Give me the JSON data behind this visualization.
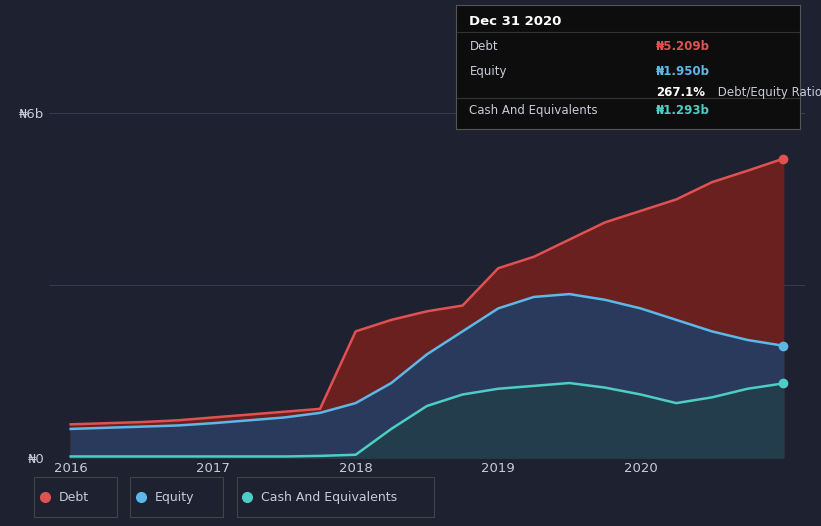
{
  "background_color": "#1e2130",
  "tooltip_bg": "#0d0d0d",
  "tooltip_border": "#555555",
  "divider_color": "#333333",
  "grid_color": "#3a3f55",
  "text_color": "#c8ccd8",
  "debt_color": "#e05252",
  "equity_color": "#5db8e8",
  "cash_color": "#4ecdc4",
  "debt_fill_color": "#6b2020",
  "equity_fill_color": "#2a3a5c",
  "cash_fill_color": "#1e4040",
  "legend_border_color": "#444444",
  "ytick_labels": [
    "₦0",
    "₦6b"
  ],
  "xlabel_ticks": [
    "2016",
    "2017",
    "2018",
    "2019",
    "2020"
  ],
  "tooltip_date": "Dec 31 2020",
  "tooltip_debt_label": "Debt",
  "tooltip_debt_value": "₦5.209b",
  "tooltip_equity_label": "Equity",
  "tooltip_equity_value": "₦1.950b",
  "tooltip_ratio": "267.1%",
  "tooltip_ratio_suffix": " Debt/Equity Ratio",
  "tooltip_cash_label": "Cash And Equivalents",
  "tooltip_cash_value": "₦1.293b",
  "legend": [
    {
      "label": "Debt",
      "color": "#e05252"
    },
    {
      "label": "Equity",
      "color": "#5db8e8"
    },
    {
      "label": "Cash And Equivalents",
      "color": "#4ecdc4"
    }
  ],
  "years": [
    2016.0,
    2016.25,
    2016.5,
    2016.75,
    2017.0,
    2017.25,
    2017.5,
    2017.75,
    2018.0,
    2018.25,
    2018.5,
    2018.75,
    2019.0,
    2019.25,
    2019.5,
    2019.75,
    2020.0,
    2020.25,
    2020.5,
    2020.75,
    2021.0
  ],
  "debt": [
    580000000.0,
    600000000.0,
    620000000.0,
    650000000.0,
    700000000.0,
    750000000.0,
    800000000.0,
    850000000.0,
    2200000000.0,
    2400000000.0,
    2550000000.0,
    2650000000.0,
    3300000000.0,
    3500000000.0,
    3800000000.0,
    4100000000.0,
    4300000000.0,
    4500000000.0,
    4800000000.0,
    5000000000.0,
    5209000000.0
  ],
  "equity": [
    500000000.0,
    520000000.0,
    540000000.0,
    560000000.0,
    600000000.0,
    650000000.0,
    700000000.0,
    780000000.0,
    950000000.0,
    1300000000.0,
    1800000000.0,
    2200000000.0,
    2600000000.0,
    2800000000.0,
    2850000000.0,
    2750000000.0,
    2600000000.0,
    2400000000.0,
    2200000000.0,
    2050000000.0,
    1950000000.0
  ],
  "cash": [
    20000000.0,
    20000000.0,
    20000000.0,
    20000000.0,
    20000000.0,
    20000000.0,
    20000000.0,
    30000000.0,
    50000000.0,
    500000000.0,
    900000000.0,
    1100000000.0,
    1200000000.0,
    1250000000.0,
    1300000000.0,
    1220000000.0,
    1100000000.0,
    950000000.0,
    1050000000.0,
    1200000000.0,
    1293000000.0
  ]
}
